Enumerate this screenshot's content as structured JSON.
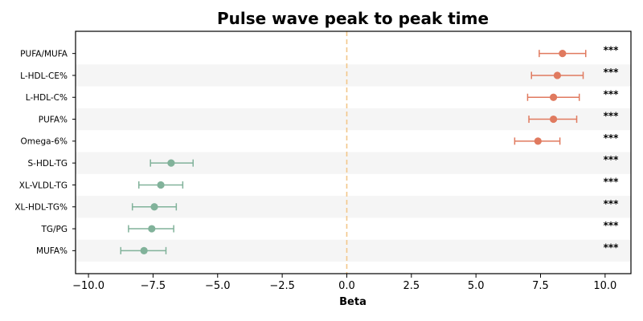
{
  "chart_data": {
    "type": "forest",
    "title": "Pulse wave peak to peak time",
    "xlabel": "Beta",
    "xlim": [
      -10.5,
      11.0
    ],
    "xticks": [
      -10.0,
      -7.5,
      -5.0,
      -2.5,
      0.0,
      2.5,
      5.0,
      7.5,
      10.0
    ],
    "xtick_labels": [
      "−10.0",
      "−7.5",
      "−5.0",
      "−2.5",
      "0.0",
      "2.5",
      "5.0",
      "7.5",
      "10.0"
    ],
    "reference_line": 0.0,
    "colors": {
      "positive": "#e07a5f",
      "negative": "#81b29a",
      "reference": "#f2c78a",
      "band": "#f5f5f5"
    },
    "rows": [
      {
        "label": "PUFA/MUFA",
        "beta": 8.35,
        "ci_low": 7.45,
        "ci_high": 9.25,
        "sig": "***"
      },
      {
        "label": "L-HDL-CE%",
        "beta": 8.15,
        "ci_low": 7.15,
        "ci_high": 9.15,
        "sig": "***"
      },
      {
        "label": "L-HDL-C%",
        "beta": 8.0,
        "ci_low": 7.0,
        "ci_high": 9.0,
        "sig": "***"
      },
      {
        "label": "PUFA%",
        "beta": 8.0,
        "ci_low": 7.05,
        "ci_high": 8.9,
        "sig": "***"
      },
      {
        "label": "Omega-6%",
        "beta": 7.4,
        "ci_low": 6.5,
        "ci_high": 8.25,
        "sig": "***"
      },
      {
        "label": "S-HDL-TG",
        "beta": -6.8,
        "ci_low": -7.6,
        "ci_high": -5.95,
        "sig": "***"
      },
      {
        "label": "XL-VLDL-TG",
        "beta": -7.2,
        "ci_low": -8.05,
        "ci_high": -6.35,
        "sig": "***"
      },
      {
        "label": "XL-HDL-TG%",
        "beta": -7.45,
        "ci_low": -8.3,
        "ci_high": -6.6,
        "sig": "***"
      },
      {
        "label": "TG/PG",
        "beta": -7.55,
        "ci_low": -8.45,
        "ci_high": -6.7,
        "sig": "***"
      },
      {
        "label": "MUFA%",
        "beta": -7.85,
        "ci_low": -8.75,
        "ci_high": -7.0,
        "sig": "***"
      }
    ]
  }
}
